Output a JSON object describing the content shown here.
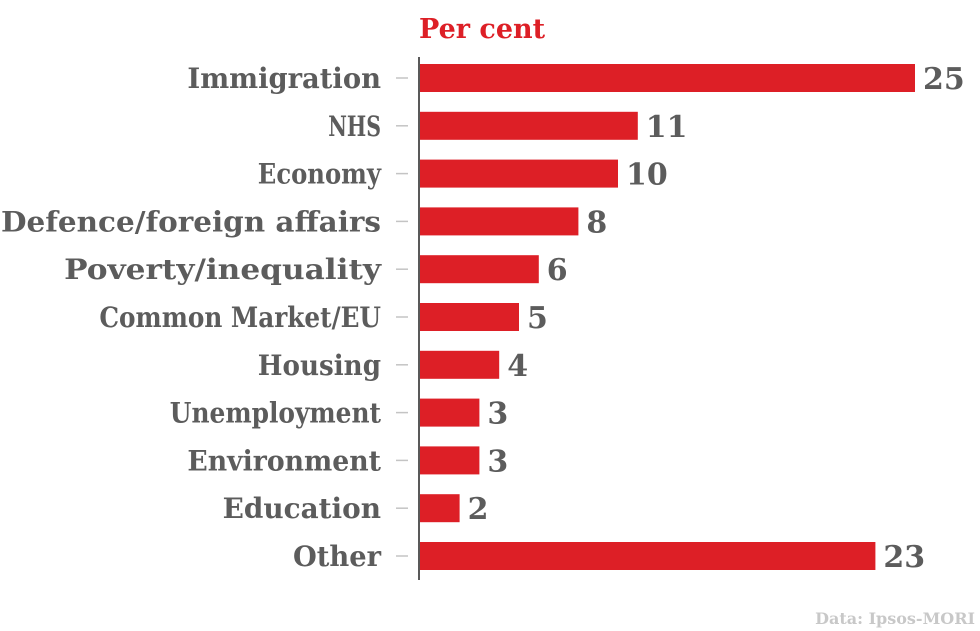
{
  "chart_data": {
    "type": "bar",
    "orientation": "horizontal",
    "unit_label": "Per cent",
    "categories": [
      "Immigration",
      "NHS",
      "Economy",
      "Defence/foreign affairs",
      "Poverty/inequality",
      "Common Market/EU",
      "Housing",
      "Unemployment",
      "Environment",
      "Education",
      "Other"
    ],
    "values": [
      25,
      11,
      10,
      8,
      6,
      5,
      4,
      3,
      3,
      2,
      23
    ],
    "xlim": [
      0,
      25
    ],
    "grid": false,
    "source": "Data: Ipsos-MORI"
  },
  "colors": {
    "bar": "#dd1f26",
    "label": "#5c5c5c",
    "unit_label": "#dd1f26",
    "axis": "#222222",
    "tick": "#c4c4c4",
    "source": "#c8c8c8"
  }
}
